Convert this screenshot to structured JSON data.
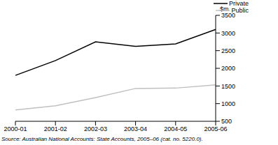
{
  "chart_data": {
    "type": "line",
    "y_label": "$m",
    "source": "Source: Australian National Accounts: State Accounts, 2005–06 (cat. no. 5220.0).",
    "categories": [
      "2000-01",
      "2001-02",
      "2002-03",
      "2003-04",
      "2004-05",
      "2005-06"
    ],
    "series": [
      {
        "name": "Private",
        "color": "#000000",
        "values": [
          1800,
          2220,
          2750,
          2620,
          2690,
          3100
        ]
      },
      {
        "name": "Public",
        "color": "#c0c0c0",
        "values": [
          820,
          940,
          1170,
          1430,
          1440,
          1530
        ]
      }
    ],
    "ylim": [
      500,
      3500
    ],
    "yticks": [
      500,
      1000,
      1500,
      2000,
      2500,
      3000,
      3500
    ],
    "legend": "top right",
    "grid": false
  }
}
